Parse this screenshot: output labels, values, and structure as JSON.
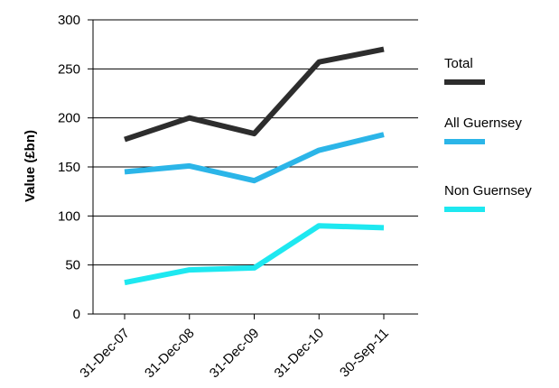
{
  "chart_data": {
    "type": "line",
    "title": "",
    "xlabel": "",
    "ylabel": "Value (£bn)",
    "categories": [
      "31-Dec-07",
      "31-Dec-08",
      "31-Dec-09",
      "31-Dec-10",
      "30-Sep-11"
    ],
    "ylim": [
      0,
      300
    ],
    "yticks": [
      0,
      50,
      100,
      150,
      200,
      250,
      300
    ],
    "grid": "horizontal",
    "legend_position": "right",
    "series": [
      {
        "name": "Total",
        "color": "#2d2d2d",
        "values": [
          178,
          200,
          184,
          257,
          270
        ]
      },
      {
        "name": "All Guernsey",
        "color": "#2bb5e8",
        "values": [
          145,
          151,
          136,
          167,
          183
        ]
      },
      {
        "name": "Non Guernsey",
        "color": "#1ee8f0",
        "values": [
          32,
          45,
          47,
          90,
          88
        ]
      }
    ]
  }
}
